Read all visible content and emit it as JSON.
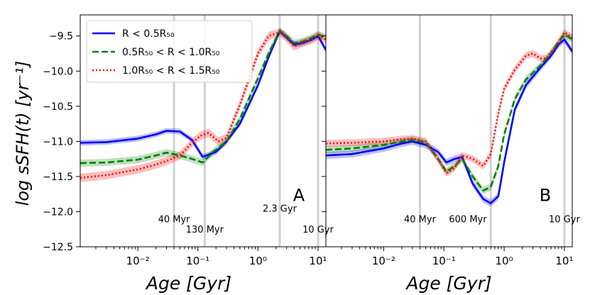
{
  "chart_data": {
    "type": "line",
    "shared_ylabel": "log sSFH(t) [yr⁻¹]",
    "ylim": [
      -12.5,
      -9.2
    ],
    "yticks": [
      -9.5,
      -10.0,
      -10.5,
      -11.0,
      -11.5,
      -12.0,
      -12.5
    ],
    "ytick_labels": [
      "−9.5",
      "−10.0",
      "−10.5",
      "−11.0",
      "−11.5",
      "−12.0",
      "−12.5"
    ],
    "xlim_gyr": [
      0.0011,
      13.5
    ],
    "xscale": "log",
    "xtick_labels": [
      "10⁻²",
      "10⁻¹",
      "10⁰",
      "10¹"
    ],
    "legend": {
      "placement": "top-left",
      "entries": [
        {
          "label": "R < 0.5R₅₀",
          "style": "solid",
          "color": "#0000ff"
        },
        {
          "label": "0.5R₅₀ < R < 1.0R₅₀",
          "style": "dashed",
          "color": "#008000"
        },
        {
          "label": "1.0R₅₀ < R < 1.5R₅₀",
          "style": "dotted",
          "color": "#ff0000"
        }
      ]
    },
    "panels": [
      {
        "panel_label": "A",
        "xlabel": "Age [Gyr]",
        "vlines": [
          0.04,
          0.13,
          2.3,
          10
        ],
        "vline_labels": [
          {
            "text": "40 Myr",
            "x": 0.04,
            "y": -12.15
          },
          {
            "text": "130 Myr",
            "x": 0.13,
            "y": -12.3
          },
          {
            "text": "2.3 Gyr",
            "x": 2.3,
            "y": -12.0
          },
          {
            "text": "10 Gyr",
            "x": 10,
            "y": -12.3
          }
        ],
        "series": [
          {
            "name": "R < 0.5R50",
            "color": "#0000ff",
            "style": "solid",
            "band": 0.04,
            "x": [
              0.0011,
              0.003,
              0.01,
              0.02,
              0.03,
              0.05,
              0.08,
              0.12,
              0.2,
              0.3,
              0.5,
              1.0,
              1.5,
              2.3,
              2.8,
              4.0,
              5.5,
              8.0,
              10.0,
              13.5
            ],
            "y": [
              -11.02,
              -11.01,
              -10.96,
              -10.9,
              -10.85,
              -10.86,
              -10.98,
              -11.22,
              -11.15,
              -11.0,
              -10.75,
              -10.2,
              -9.8,
              -9.43,
              -9.5,
              -9.62,
              -9.6,
              -9.55,
              -9.5,
              -9.7
            ]
          },
          {
            "name": "0.5R50 < R < 1.0R50",
            "color": "#008000",
            "style": "dashed",
            "band": 0.05,
            "x": [
              0.0011,
              0.003,
              0.01,
              0.02,
              0.03,
              0.05,
              0.08,
              0.12,
              0.18,
              0.3,
              0.5,
              1.0,
              1.5,
              2.3,
              2.8,
              4.0,
              5.5,
              8.0,
              10.0,
              13.5
            ],
            "y": [
              -11.31,
              -11.3,
              -11.26,
              -11.2,
              -11.16,
              -11.2,
              -11.25,
              -11.3,
              -11.15,
              -11.0,
              -10.68,
              -10.1,
              -9.75,
              -9.43,
              -9.48,
              -9.6,
              -9.58,
              -9.52,
              -9.48,
              -9.52
            ]
          },
          {
            "name": "1.0R50 < R < 1.5R50",
            "color": "#ff0000",
            "style": "dotted",
            "band": 0.06,
            "x": [
              0.0011,
              0.003,
              0.01,
              0.02,
              0.03,
              0.05,
              0.08,
              0.11,
              0.15,
              0.22,
              0.3,
              0.5,
              1.0,
              1.5,
              2.3,
              2.8,
              4.0,
              5.5,
              8.0,
              10.0,
              13.5
            ],
            "y": [
              -11.52,
              -11.48,
              -11.4,
              -11.33,
              -11.28,
              -11.2,
              -11.02,
              -10.92,
              -10.88,
              -11.0,
              -10.95,
              -10.48,
              -9.75,
              -9.5,
              -9.45,
              -9.5,
              -9.65,
              -9.6,
              -9.55,
              -9.5,
              -9.55
            ]
          }
        ]
      },
      {
        "panel_label": "B",
        "xlabel": "Age [Gyr]",
        "vlines": [
          0.04,
          0.6,
          10
        ],
        "vline_labels": [
          {
            "text": "40 Myr",
            "x": 0.04,
            "y": -12.15
          },
          {
            "text": "600 Myr",
            "x": 0.25,
            "y": -12.15
          },
          {
            "text": "10 Gyr",
            "x": 10,
            "y": -12.15
          }
        ],
        "series": [
          {
            "name": "R < 0.5R50",
            "color": "#0000ff",
            "style": "solid",
            "band": 0.05,
            "x": [
              0.0011,
              0.003,
              0.01,
              0.02,
              0.03,
              0.05,
              0.08,
              0.11,
              0.15,
              0.2,
              0.3,
              0.45,
              0.6,
              0.8,
              1.0,
              1.5,
              2.3,
              4.0,
              6.0,
              8.0,
              10.0,
              13.5
            ],
            "y": [
              -11.2,
              -11.18,
              -11.1,
              -11.03,
              -11.0,
              -11.05,
              -11.15,
              -11.3,
              -11.25,
              -11.22,
              -11.6,
              -11.82,
              -11.88,
              -11.78,
              -11.3,
              -10.55,
              -10.2,
              -9.95,
              -9.78,
              -9.62,
              -9.55,
              -9.72
            ]
          },
          {
            "name": "0.5R50 < R < 1.0R50",
            "color": "#008000",
            "style": "dashed",
            "band": 0.05,
            "x": [
              0.0011,
              0.003,
              0.01,
              0.02,
              0.03,
              0.05,
              0.08,
              0.11,
              0.15,
              0.2,
              0.3,
              0.45,
              0.6,
              0.8,
              1.0,
              1.5,
              2.3,
              4.0,
              6.0,
              8.0,
              10.0,
              13.5
            ],
            "y": [
              -11.12,
              -11.1,
              -11.05,
              -11.0,
              -10.98,
              -11.02,
              -11.25,
              -11.43,
              -11.35,
              -11.25,
              -11.5,
              -11.7,
              -11.65,
              -11.35,
              -10.9,
              -10.4,
              -10.12,
              -9.92,
              -9.75,
              -9.58,
              -9.48,
              -9.55
            ]
          },
          {
            "name": "1.0R50 < R < 1.5R50",
            "color": "#ff0000",
            "style": "dotted",
            "band": 0.05,
            "x": [
              0.0011,
              0.003,
              0.01,
              0.02,
              0.03,
              0.05,
              0.08,
              0.11,
              0.15,
              0.2,
              0.3,
              0.45,
              0.6,
              0.8,
              1.0,
              1.5,
              2.3,
              3.0,
              4.0,
              5.0,
              8.0,
              10.0,
              13.5
            ],
            "y": [
              -11.03,
              -11.02,
              -11.0,
              -10.97,
              -10.96,
              -11.0,
              -11.25,
              -11.45,
              -11.38,
              -11.2,
              -11.25,
              -11.35,
              -11.18,
              -10.6,
              -10.25,
              -9.98,
              -9.78,
              -9.75,
              -9.82,
              -9.82,
              -9.6,
              -9.45,
              -9.52
            ]
          }
        ]
      }
    ]
  }
}
